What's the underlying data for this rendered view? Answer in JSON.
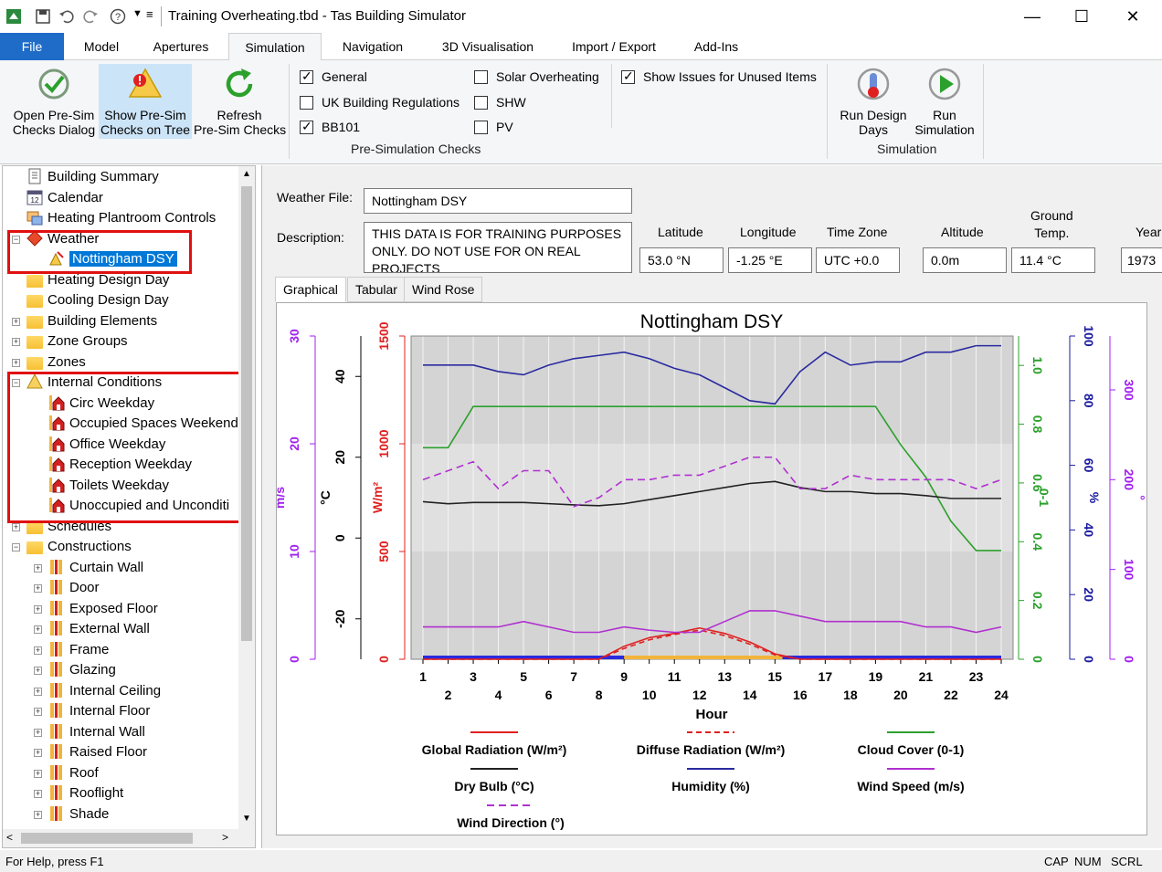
{
  "window": {
    "title": "Training Overheating.tbd - Tas Building Simulator"
  },
  "ribbon_tabs": [
    "File",
    "Model",
    "Apertures",
    "Simulation",
    "Navigation",
    "3D Visualisation",
    "Import / Export",
    "Add-Ins"
  ],
  "ribbon": {
    "open_presim": "Open Pre-Sim\nChecks Dialog",
    "show_presim": "Show Pre-Sim\nChecks on Tree",
    "refresh": "Refresh\nPre-Sim Checks",
    "checks": [
      {
        "label": "General",
        "checked": true
      },
      {
        "label": "UK Building Regulations",
        "checked": false
      },
      {
        "label": "BB101",
        "checked": true
      },
      {
        "label": "Solar Overheating",
        "checked": false
      },
      {
        "label": "SHW",
        "checked": false
      },
      {
        "label": "PV",
        "checked": false
      },
      {
        "label": "Show Issues for Unused Items",
        "checked": true
      }
    ],
    "presim_group": "Pre-Simulation Checks",
    "run_design_days": "Run Design\nDays",
    "run_simulation": "Run\nSimulation",
    "simulation_group": "Simulation"
  },
  "tree": {
    "items": [
      "Building Summary",
      "Calendar",
      "Heating Plantroom Controls",
      "Weather",
      "Nottingham DSY",
      "Heating Design Day",
      "Cooling Design Day",
      "Building Elements",
      "Zone Groups",
      "Zones",
      "Internal Conditions",
      "Circ Weekday",
      "Occupied Spaces Weekend",
      "Office Weekday",
      "Reception Weekday",
      "Toilets Weekday",
      "Unoccupied and Unconditi",
      "Schedules",
      "Constructions",
      "Curtain Wall",
      "Door",
      "Exposed Floor",
      "External Wall",
      "Frame",
      "Glazing",
      "Internal Ceiling",
      "Internal Floor",
      "Internal Wall",
      "Raised Floor",
      "Roof",
      "Rooflight",
      "Shade"
    ]
  },
  "weather": {
    "file_label": "Weather File:",
    "file_value": "Nottingham DSY",
    "desc_label": "Description:",
    "desc_value": "THIS DATA IS FOR TRAINING PURPOSES ONLY. DO NOT USE FOR ON REAL PROJECTS",
    "latitude_label": "Latitude",
    "latitude": "53.0 °N",
    "longitude_label": "Longitude",
    "longitude": "-1.25 °E",
    "timezone_label": "Time Zone",
    "timezone": "UTC +0.0",
    "altitude_label": "Altitude",
    "altitude": "0.0m",
    "ground_label": "Ground\nTemp.",
    "ground": "11.4 °C",
    "year_label": "Year",
    "year": "1973"
  },
  "subtabs": [
    "Graphical",
    "Tabular",
    "Wind Rose"
  ],
  "status": {
    "help": "For Help, press F1",
    "indicators": [
      "CAP",
      "NUM",
      "SCRL"
    ]
  },
  "colors": {
    "accent": "#1e6cc8",
    "selection": "#0078d7",
    "highlight_box": "#e01010"
  },
  "chart_data": {
    "type": "line",
    "title": "Nottingham DSY",
    "xlabel": "Hour",
    "x": [
      1,
      2,
      3,
      4,
      5,
      6,
      7,
      8,
      9,
      10,
      11,
      12,
      13,
      14,
      15,
      16,
      17,
      18,
      19,
      20,
      21,
      22,
      23,
      24
    ],
    "axes": {
      "wind_speed_ms": {
        "label": "m/s",
        "ticks": [
          0,
          10,
          20,
          30
        ],
        "range": [
          0,
          30
        ]
      },
      "dry_bulb_c": {
        "label": "°C",
        "ticks": [
          -20,
          0,
          20,
          40
        ],
        "range": [
          -30,
          50
        ]
      },
      "radiation_wm2": {
        "label": "W/m²",
        "ticks": [
          0,
          500,
          1000,
          1500
        ],
        "range": [
          0,
          1500
        ]
      },
      "cloud_cover": {
        "label": "0-1",
        "ticks": [
          0,
          0.2,
          0.4,
          0.6,
          0.8,
          1.0
        ],
        "range": [
          0,
          1.1
        ]
      },
      "humidity_pct": {
        "label": "%",
        "ticks": [
          0,
          20,
          40,
          60,
          80,
          100
        ],
        "range": [
          0,
          100
        ]
      },
      "wind_dir_deg": {
        "label": "°",
        "ticks": [
          0,
          100,
          200,
          300
        ],
        "range": [
          0,
          360
        ]
      }
    },
    "series": [
      {
        "name": "Global Radiation (W/m²)",
        "axis": "radiation_wm2",
        "color": "#e02020",
        "dash": "none",
        "values": [
          0,
          0,
          0,
          0,
          0,
          0,
          0,
          0,
          60,
          100,
          120,
          145,
          120,
          80,
          25,
          0,
          0,
          0,
          0,
          0,
          0,
          0,
          0,
          0
        ]
      },
      {
        "name": "Diffuse Radiation (W/m²)",
        "axis": "radiation_wm2",
        "color": "#e02020",
        "dash": "6,4",
        "values": [
          0,
          0,
          0,
          0,
          0,
          0,
          0,
          0,
          50,
          90,
          115,
          135,
          110,
          70,
          20,
          0,
          0,
          0,
          0,
          0,
          0,
          0,
          0,
          0
        ]
      },
      {
        "name": "Cloud Cover (0-1)",
        "axis": "cloud_cover",
        "color": "#2ca02c",
        "dash": "none",
        "values": [
          0.72,
          0.72,
          0.86,
          0.86,
          0.86,
          0.86,
          0.86,
          0.86,
          0.86,
          0.86,
          0.86,
          0.86,
          0.86,
          0.86,
          0.86,
          0.86,
          0.86,
          0.86,
          0.86,
          0.73,
          0.62,
          0.47,
          0.37,
          0.37
        ]
      },
      {
        "name": "Dry Bulb (°C)",
        "axis": "dry_bulb_c",
        "color": "#222222",
        "dash": "none",
        "values": [
          9,
          8.5,
          8.8,
          8.8,
          8.8,
          8.5,
          8.2,
          8,
          8.5,
          9.5,
          10.5,
          11.5,
          12.5,
          13.5,
          14,
          12.5,
          11.5,
          11.5,
          11,
          11,
          10.5,
          9.8,
          9.8,
          9.8
        ]
      },
      {
        "name": "Humidity (%)",
        "axis": "humidity_pct",
        "color": "#2a2aa0",
        "dash": "none",
        "values": [
          91,
          91,
          91,
          89,
          88,
          91,
          93,
          94,
          95,
          93,
          90,
          88,
          84,
          80,
          79,
          89,
          95,
          91,
          92,
          92,
          95,
          95,
          97,
          97
        ]
      },
      {
        "name": "Wind Speed (m/s)",
        "axis": "wind_speed_ms",
        "color": "#b030d0",
        "dash": "none",
        "values": [
          3,
          3,
          3,
          3,
          3.5,
          3,
          2.5,
          2.5,
          3,
          2.7,
          2.5,
          2.5,
          3.5,
          4.5,
          4.5,
          4,
          3.5,
          3.5,
          3.5,
          3.5,
          3,
          3,
          2.5,
          3
        ]
      },
      {
        "name": "Wind Direction (°)",
        "axis": "wind_dir_deg",
        "color": "#b030d0",
        "dash": "8,5",
        "values": [
          200,
          210,
          220,
          190,
          210,
          210,
          170,
          180,
          200,
          200,
          205,
          205,
          215,
          225,
          225,
          190,
          190,
          205,
          200,
          200,
          200,
          200,
          190,
          200
        ]
      }
    ],
    "legend": [
      "Global Radiation (W/m²)",
      "Diffuse Radiation (W/m²)",
      "Cloud Cover (0-1)",
      "Dry Bulb (°C)",
      "Humidity (%)",
      "Wind Speed (m/s)",
      "Wind Direction (°)"
    ]
  }
}
